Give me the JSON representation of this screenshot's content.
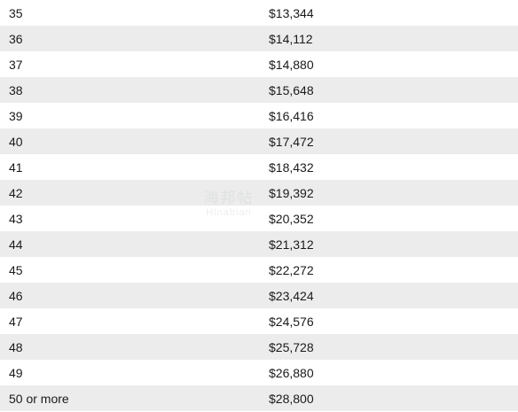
{
  "table": {
    "rows": [
      {
        "age": "35",
        "amount": "$13,344"
      },
      {
        "age": "36",
        "amount": "$14,112"
      },
      {
        "age": "37",
        "amount": "$14,880"
      },
      {
        "age": "38",
        "amount": "$15,648"
      },
      {
        "age": "39",
        "amount": "$16,416"
      },
      {
        "age": "40",
        "amount": "$17,472"
      },
      {
        "age": "41",
        "amount": "$18,432"
      },
      {
        "age": "42",
        "amount": "$19,392"
      },
      {
        "age": "43",
        "amount": "$20,352"
      },
      {
        "age": "44",
        "amount": "$21,312"
      },
      {
        "age": "45",
        "amount": "$22,272"
      },
      {
        "age": "46",
        "amount": "$23,424"
      },
      {
        "age": "47",
        "amount": "$24,576"
      },
      {
        "age": "48",
        "amount": "$25,728"
      },
      {
        "age": "49",
        "amount": "$26,880"
      },
      {
        "age": "50 or more",
        "amount": "$28,800"
      }
    ]
  },
  "watermark": {
    "text_cn": "海邦帖",
    "text_en": "Hinabian"
  }
}
